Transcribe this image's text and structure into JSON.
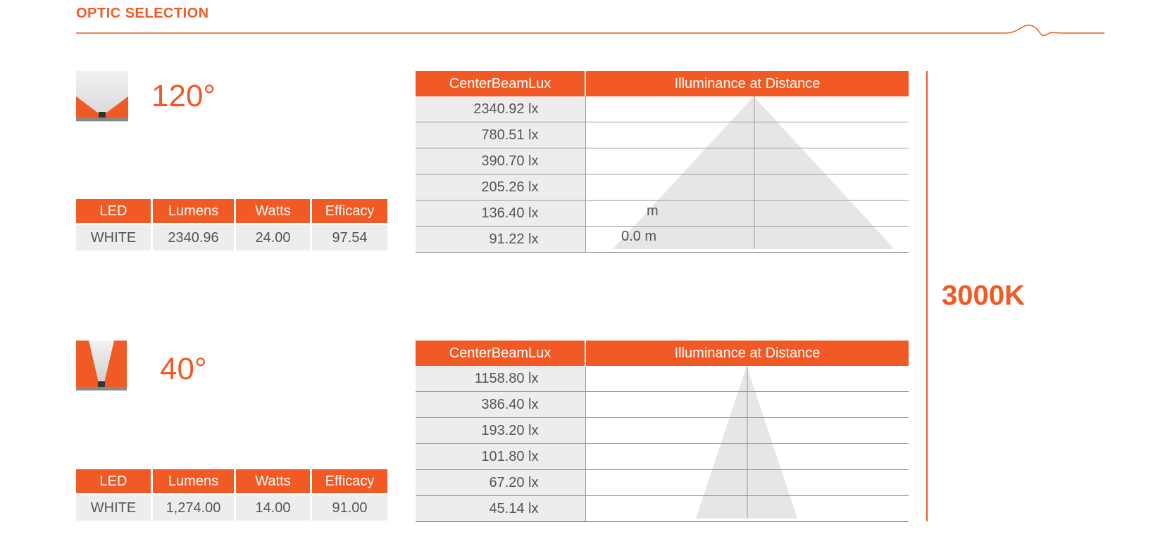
{
  "header": {
    "title": "OPTIC SELECTION"
  },
  "colors": {
    "accent": "#F15A24",
    "row_bg": "#EDEDED",
    "beam": "#E6E6E6",
    "text": "#555555"
  },
  "cct": "3000K",
  "optics": [
    {
      "angle": "120°",
      "icon": "wide-beam-icon",
      "spec": {
        "headers": [
          "LED",
          "Lumens",
          "Watts",
          "Efficacy"
        ],
        "row": [
          "WHITE",
          "2340.96",
          "24.00",
          "97.54"
        ]
      },
      "lux": {
        "headers": [
          "CenterBeamLux",
          "Illuminance at Distance"
        ],
        "values": [
          "2340.92 lx",
          "780.51 lx",
          "390.70 lx",
          "205.26 lx",
          "136.40 lx",
          "91.22 lx"
        ],
        "distance_labels": [
          "m",
          "0.0 m"
        ]
      }
    },
    {
      "angle": "40°",
      "icon": "narrow-beam-icon",
      "spec": {
        "headers": [
          "LED",
          "Lumens",
          "Watts",
          "Efficacy"
        ],
        "row": [
          "WHITE",
          "1,274.00",
          "14.00",
          "91.00"
        ]
      },
      "lux": {
        "headers": [
          "CenterBeamLux",
          "Illuminance at Distance"
        ],
        "values": [
          "1158.80 lx",
          "386.40 lx",
          "193.20 lx",
          "101.80 lx",
          "67.20 lx",
          "45.14 lx"
        ]
      }
    }
  ]
}
